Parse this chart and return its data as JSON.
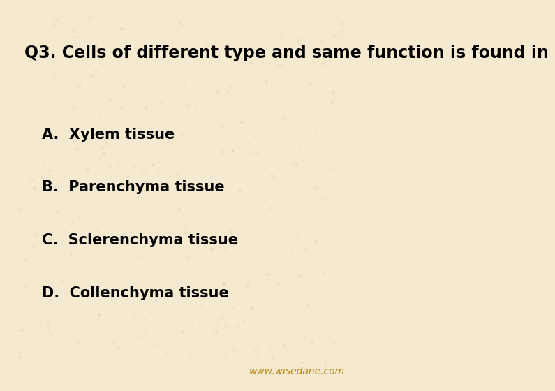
{
  "title": "Q3. Cells of different type and same function is found in",
  "options": [
    "A.  Xylem tissue",
    "B.  Parenchyma tissue",
    "C.  Sclerenchyma tissue",
    "D.  Collenchyma tissue"
  ],
  "background_color": "#f5ead0",
  "card_color": "#f5ead0",
  "title_color": "#000000",
  "option_color": "#000000",
  "watermark": "www.wisedane.com",
  "watermark_color": "#b8860b",
  "title_fontsize": 17,
  "option_fontsize": 15,
  "watermark_fontsize": 10,
  "fig_width": 7.2,
  "fig_height": 5.4
}
